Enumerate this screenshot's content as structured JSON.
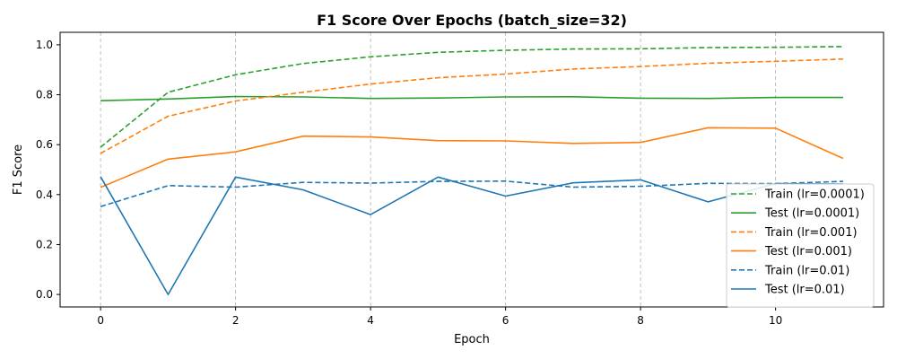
{
  "chart_data": {
    "type": "line",
    "title": "F1 Score Over Epochs (batch_size=32)",
    "xlabel": "Epoch",
    "ylabel": "F1 Score",
    "xlim": [
      -0.6,
      11.6
    ],
    "ylim": [
      -0.05,
      1.05
    ],
    "xticks": [
      0,
      2,
      4,
      6,
      8,
      10
    ],
    "yticks": [
      0.0,
      0.2,
      0.4,
      0.6,
      0.8,
      1.0
    ],
    "ytick_labels": [
      "0.0",
      "0.2",
      "0.4",
      "0.6",
      "0.8",
      "1.0"
    ],
    "grid": "vertical dashed",
    "legend_position": "lower-right",
    "x": [
      0,
      1,
      2,
      3,
      4,
      5,
      6,
      7,
      8,
      9,
      10,
      11
    ],
    "series": [
      {
        "name": "Train (lr=0.0001)",
        "color": "#2ca02c",
        "style": "dashed",
        "values": [
          0.59,
          0.81,
          0.88,
          0.925,
          0.952,
          0.97,
          0.978,
          0.983,
          0.984,
          0.989,
          0.99,
          0.993
        ]
      },
      {
        "name": "Test (lr=0.0001)",
        "color": "#2ca02c",
        "style": "solid",
        "values": [
          0.776,
          0.783,
          0.793,
          0.791,
          0.785,
          0.787,
          0.791,
          0.792,
          0.786,
          0.785,
          0.789,
          0.789
        ]
      },
      {
        "name": "Train (lr=0.001)",
        "color": "#ff7f0e",
        "style": "dashed",
        "values": [
          0.565,
          0.714,
          0.775,
          0.81,
          0.843,
          0.868,
          0.883,
          0.903,
          0.913,
          0.926,
          0.934,
          0.943
        ]
      },
      {
        "name": "Test (lr=0.001)",
        "color": "#ff7f0e",
        "style": "solid",
        "values": [
          0.429,
          0.542,
          0.571,
          0.634,
          0.631,
          0.616,
          0.615,
          0.605,
          0.609,
          0.668,
          0.666,
          0.545
        ]
      },
      {
        "name": "Train (lr=0.01)",
        "color": "#1f77b4",
        "style": "dashed",
        "values": [
          0.352,
          0.436,
          0.43,
          0.449,
          0.446,
          0.453,
          0.454,
          0.43,
          0.433,
          0.445,
          0.444,
          0.453
        ]
      },
      {
        "name": "Test (lr=0.01)",
        "color": "#1f77b4",
        "style": "solid",
        "values": [
          0.472,
          0.0,
          0.47,
          0.419,
          0.32,
          0.47,
          0.394,
          0.447,
          0.459,
          0.371,
          0.444,
          0.442
        ]
      }
    ]
  }
}
